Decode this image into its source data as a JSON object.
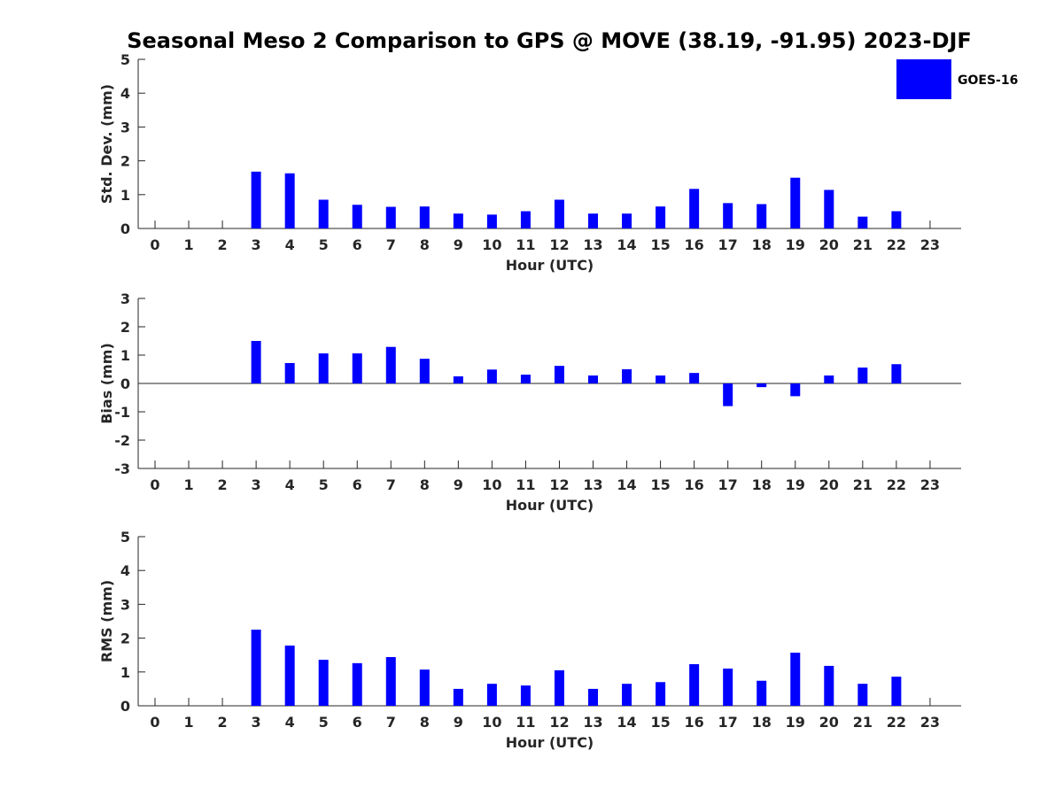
{
  "title": "Seasonal Meso 2 Comparison to GPS @ MOVE (38.19, -91.95) 2023-DJF",
  "legend": {
    "label": "GOES-16",
    "color": "#0000ff"
  },
  "bar_color": "#0000ff",
  "chart_data": [
    {
      "type": "bar",
      "xlabel": "Hour (UTC)",
      "ylabel": "Std. Dev. (mm)",
      "categories": [
        "0",
        "1",
        "2",
        "3",
        "4",
        "5",
        "6",
        "7",
        "8",
        "9",
        "10",
        "11",
        "12",
        "13",
        "14",
        "15",
        "16",
        "17",
        "18",
        "19",
        "20",
        "21",
        "22",
        "23"
      ],
      "ylim": [
        0,
        5
      ],
      "yticks": [
        "0",
        "1",
        "2",
        "3",
        "4",
        "5"
      ],
      "series": [
        {
          "name": "GOES-16",
          "values": [
            null,
            null,
            null,
            1.68,
            1.63,
            0.85,
            0.7,
            0.64,
            0.65,
            0.44,
            0.41,
            0.51,
            0.85,
            0.44,
            0.44,
            0.65,
            1.17,
            0.75,
            0.72,
            1.5,
            1.14,
            0.35,
            0.51,
            null
          ]
        }
      ],
      "grid": false
    },
    {
      "type": "bar",
      "xlabel": "Hour (UTC)",
      "ylabel": "Bias (mm)",
      "categories": [
        "0",
        "1",
        "2",
        "3",
        "4",
        "5",
        "6",
        "7",
        "8",
        "9",
        "10",
        "11",
        "12",
        "13",
        "14",
        "15",
        "16",
        "17",
        "18",
        "19",
        "20",
        "21",
        "22",
        "23"
      ],
      "ylim": [
        -3,
        3
      ],
      "yticks": [
        "-3",
        "-2",
        "-1",
        "0",
        "1",
        "2",
        "3"
      ],
      "series": [
        {
          "name": "GOES-16",
          "values": [
            null,
            null,
            null,
            1.5,
            0.72,
            1.06,
            1.06,
            1.29,
            0.87,
            0.25,
            0.49,
            0.31,
            0.62,
            0.28,
            0.5,
            0.28,
            0.37,
            -0.8,
            -0.13,
            -0.45,
            0.28,
            0.56,
            0.68,
            null
          ]
        }
      ],
      "grid": false
    },
    {
      "type": "bar",
      "xlabel": "Hour (UTC)",
      "ylabel": "RMS (mm)",
      "categories": [
        "0",
        "1",
        "2",
        "3",
        "4",
        "5",
        "6",
        "7",
        "8",
        "9",
        "10",
        "11",
        "12",
        "13",
        "14",
        "15",
        "16",
        "17",
        "18",
        "19",
        "20",
        "21",
        "22",
        "23"
      ],
      "ylim": [
        0,
        5
      ],
      "yticks": [
        "0",
        "1",
        "2",
        "3",
        "4",
        "5"
      ],
      "series": [
        {
          "name": "GOES-16",
          "values": [
            null,
            null,
            null,
            2.25,
            1.78,
            1.36,
            1.26,
            1.44,
            1.07,
            0.5,
            0.65,
            0.6,
            1.05,
            0.5,
            0.65,
            0.7,
            1.23,
            1.1,
            0.74,
            1.57,
            1.18,
            0.65,
            0.86,
            null
          ]
        }
      ],
      "grid": false
    }
  ]
}
